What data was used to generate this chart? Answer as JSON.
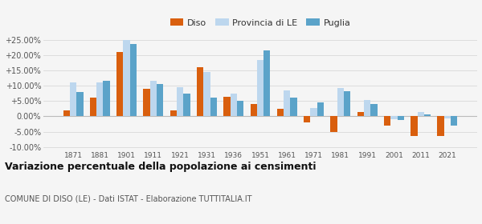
{
  "years": [
    1871,
    1881,
    1901,
    1911,
    1921,
    1931,
    1936,
    1951,
    1961,
    1971,
    1981,
    1991,
    2001,
    2011,
    2021
  ],
  "diso": [
    2.0,
    6.0,
    21.0,
    9.0,
    2.0,
    16.0,
    6.5,
    4.0,
    2.5,
    -2.0,
    -5.2,
    1.5,
    -3.0,
    -6.5,
    -6.5
  ],
  "provincia_le": [
    11.0,
    11.0,
    25.0,
    11.5,
    9.5,
    14.5,
    7.5,
    18.5,
    8.5,
    2.7,
    9.2,
    5.3,
    -0.8,
    1.5,
    -0.7
  ],
  "puglia": [
    8.0,
    11.5,
    23.5,
    10.5,
    7.5,
    6.0,
    5.0,
    21.5,
    6.2,
    4.6,
    8.2,
    4.0,
    -1.2,
    0.7,
    -3.0
  ],
  "diso_color": "#d95f0e",
  "provincia_color": "#bdd7ee",
  "puglia_color": "#5ba3c9",
  "title": "Variazione percentuale della popolazione ai censimenti",
  "subtitle": "COMUNE DI DISO (LE) - Dati ISTAT - Elaborazione TUTTITALIA.IT",
  "ylim": [
    -11,
    27
  ],
  "yticks": [
    -10,
    -5,
    0,
    5,
    10,
    15,
    20,
    25
  ],
  "bar_width": 0.25,
  "bg_color": "#f5f5f5",
  "grid_color": "#dddddd"
}
